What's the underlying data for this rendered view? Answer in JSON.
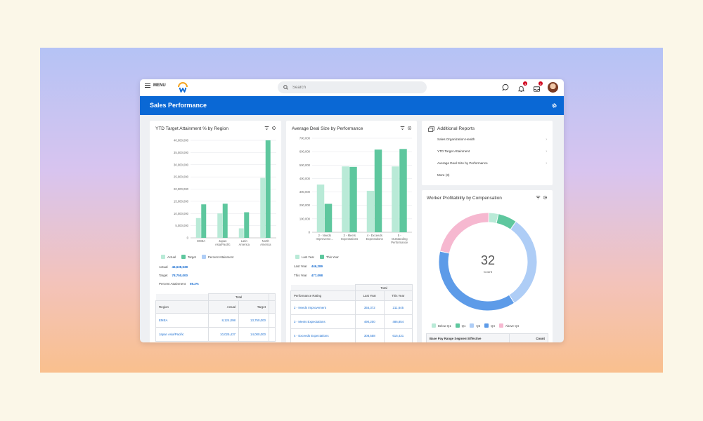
{
  "topbar": {
    "menu_label": "MENU",
    "search_placeholder": "Search",
    "notifications_count": "4",
    "inbox_count": "4"
  },
  "page": {
    "title": "Sales Performance"
  },
  "ytd_card": {
    "title": "YTD Target Attainment % by Region",
    "legend": [
      "Actual",
      "Target",
      "Percent Attainment"
    ],
    "summary": [
      {
        "label": "Actual",
        "value": "46,638,538"
      },
      {
        "label": "Target",
        "value": "78,750,000"
      },
      {
        "label": "Percent Attainment",
        "value": "59.2%"
      }
    ],
    "table": {
      "group_header": "Total",
      "columns": [
        "Region",
        "Actual",
        "Target"
      ],
      "rows": [
        [
          "EMEA",
          "8,124,098",
          "13,750,000"
        ],
        [
          "Japan Asia/Pacific",
          "10,025,437",
          "14,000,000"
        ]
      ]
    }
  },
  "deal_card": {
    "title": "Average Deal Size by Performance",
    "legend": [
      "Last Year",
      "This Year"
    ],
    "summary": [
      {
        "label": "Last Year",
        "value": "446,289"
      },
      {
        "label": "This Year",
        "value": "477,098"
      }
    ],
    "table": {
      "group_header": "Total",
      "columns": [
        "Performance Rating",
        "Last Year",
        "This Year"
      ],
      "rows": [
        [
          "2 - Needs Improvement",
          "355,372",
          "211,645"
        ],
        [
          "3 - Meets Expectations",
          "490,200",
          "486,854"
        ],
        [
          "4 - Exceeds Expectations",
          "308,558",
          "615,431"
        ]
      ]
    }
  },
  "reports_card": {
    "title": "Additional Reports",
    "items": [
      "Sales Organization Health",
      "YTD Target Attainment",
      "Average Deal Size by Performance",
      "More (3)"
    ]
  },
  "profit_card": {
    "title": "Worker Profitability by Compensation",
    "center_value": "32",
    "center_label": "Count",
    "legend": [
      "Below Q1",
      "Q1",
      "Q3",
      "Q4",
      "Above Q4"
    ],
    "table_columns": [
      "Base Pay Range Segment Effective",
      "Count"
    ]
  },
  "colors": {
    "header": "#0a68d5",
    "actual": "#b9ead7",
    "target": "#5ec79e",
    "percent": "#aecdf6",
    "donut_q4": "#5d9be8",
    "donut_q3": "#aecdf6",
    "donut_above": "#f6b8d0"
  },
  "chart_data": [
    {
      "type": "bar",
      "title": "YTD Target Attainment % by Region",
      "categories": [
        "EMEA",
        "Japan Asia/Pacific",
        "Latin America",
        "North America"
      ],
      "series": [
        {
          "name": "Actual",
          "values": [
            8124098,
            10025437,
            3900000,
            24600000
          ]
        },
        {
          "name": "Target",
          "values": [
            13750000,
            14000000,
            10500000,
            40000000
          ]
        }
      ],
      "ylim": [
        0,
        40000000
      ],
      "yticks": [
        "0",
        "5,000,000",
        "10,000,000",
        "15,000,000",
        "20,000,000",
        "25,000,000",
        "30,000,000",
        "35,000,000",
        "40,000,000"
      ],
      "tick_values": [
        0,
        5000000,
        10000000,
        15000000,
        20000000,
        25000000,
        30000000,
        35000000,
        40000000
      ],
      "legend": "bottom-left"
    },
    {
      "type": "bar",
      "title": "Average Deal Size by Performance",
      "categories": [
        "2 - Needs Improvement",
        "3 - Meets Expectations",
        "4 - Exceeds Expectations",
        "5 - Outstanding Performance"
      ],
      "category_labels": [
        [
          "2 - Needs",
          "Improveme..."
        ],
        [
          "3 - Meets",
          "Expectations"
        ],
        [
          "4 - Exceeds",
          "Expectations"
        ],
        [
          "5 -",
          "Outstanding",
          "Performance"
        ]
      ],
      "series": [
        {
          "name": "Last Year",
          "values": [
            355372,
            490200,
            308558,
            490000
          ]
        },
        {
          "name": "This Year",
          "values": [
            211645,
            486854,
            615431,
            620000
          ]
        }
      ],
      "ylim": [
        0,
        700000
      ],
      "yticks": [
        "0",
        "100,000",
        "200,000",
        "300,000",
        "400,000",
        "500,000",
        "600,000",
        "700,000"
      ],
      "tick_values": [
        0,
        100000,
        200000,
        300000,
        400000,
        500000,
        600000,
        700000
      ],
      "legend": "bottom-left"
    },
    {
      "type": "pie",
      "title": "Worker Profitability by Compensation",
      "labels": [
        "Below Q1",
        "Q1",
        "Q3",
        "Q4",
        "Above Q4"
      ],
      "values": [
        1,
        2,
        10,
        12,
        7
      ],
      "colors": [
        "#b9ead7",
        "#5ec79e",
        "#aecdf6",
        "#5d9be8",
        "#f6b8d0"
      ]
    }
  ]
}
